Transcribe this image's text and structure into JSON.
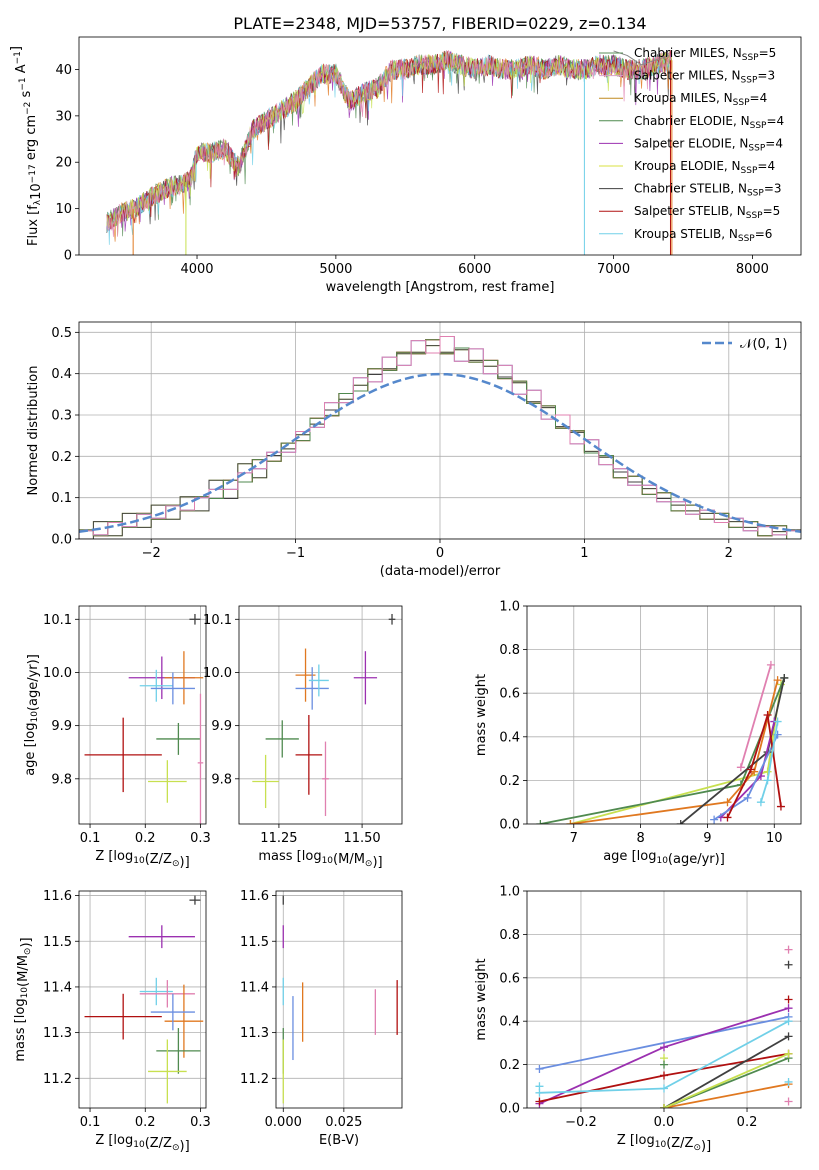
{
  "figure_title": "PLATE=2348, MJD=53757, FIBERID=0229, z=0.134",
  "legend_entries": [
    {
      "label": "Chabrier MILES, N",
      "sub": "SSP",
      "suffix": "=5",
      "color": "#5a8f5a"
    },
    {
      "label": "Salpeter MILES, N",
      "sub": "SSP",
      "suffix": "=3",
      "color": "#d8a0c8"
    },
    {
      "label": "Kroupa MILES, N",
      "sub": "SSP",
      "suffix": "=4",
      "color": "#c08a20"
    },
    {
      "label": "Chabrier ELODIE, N",
      "sub": "SSP",
      "suffix": "=4",
      "color": "#4f8a4f"
    },
    {
      "label": "Salpeter ELODIE, N",
      "sub": "SSP",
      "suffix": "=4",
      "color": "#9b30b0"
    },
    {
      "label": "Kroupa ELODIE, N",
      "sub": "SSP",
      "suffix": "=4",
      "color": "#d8e040"
    },
    {
      "label": "Chabrier STELIB, N",
      "sub": "SSP",
      "suffix": "=3",
      "color": "#404040"
    },
    {
      "label": "Salpeter STELIB, N",
      "sub": "SSP",
      "suffix": "=5",
      "color": "#b01010"
    },
    {
      "label": "Kroupa STELIB, N",
      "sub": "SSP",
      "suffix": "=6",
      "color": "#70d0e8"
    }
  ],
  "colors": [
    "#5a8f5a",
    "#e080b0",
    "#e07820",
    "#4f8a4f",
    "#9b30b0",
    "#c8e050",
    "#404040",
    "#b01010",
    "#70d0e8",
    "#6a8ee0"
  ],
  "chart_data": [
    {
      "id": "spectrum",
      "type": "line",
      "xlabel": "wavelength [Angstrom, rest frame]",
      "ylabel": "Flux [f",
      "ylabel_sub": "λ",
      "ylabel_rest": "10",
      "ylabel_sup1": "−17",
      "ylabel_unit": " erg cm",
      "ylabel_sup2": "−2",
      "ylabel_unit2": " s",
      "ylabel_sup3": "−1",
      "ylabel_unit3": " A",
      "ylabel_sup4": "−1",
      "ylabel_end": "]",
      "xlim": [
        3150,
        8350
      ],
      "ylim": [
        0,
        47
      ],
      "xticks": [
        "4000",
        "5000",
        "6000",
        "7000",
        "8000"
      ],
      "xtick_values": [
        4000,
        5000,
        6000,
        7000,
        8000
      ],
      "yticks": [
        "0",
        "10",
        "20",
        "30",
        "40"
      ],
      "ytick_values": [
        0,
        10,
        20,
        30,
        40
      ],
      "x": [
        3350,
        3450,
        3550,
        3650,
        3750,
        3850,
        3950,
        4000,
        4100,
        4200,
        4300,
        4400,
        4500,
        4600,
        4700,
        4800,
        4900,
        5000,
        5100,
        5200,
        5300,
        5400,
        5500,
        5600,
        5700,
        5800,
        5900,
        6000,
        6100,
        6200,
        6300,
        6400,
        6500,
        6600,
        6700,
        6800,
        6900,
        7000,
        7100,
        7200,
        7300,
        7400
      ],
      "y": [
        7,
        9,
        10,
        12,
        14,
        15,
        16,
        22,
        22,
        23,
        19,
        27,
        29,
        31,
        33,
        36,
        39,
        39,
        33,
        35,
        36,
        40,
        40,
        41,
        41,
        42,
        41,
        40,
        41,
        40,
        40,
        41,
        40,
        41,
        40,
        40,
        41,
        41,
        40,
        40,
        41,
        42
      ],
      "model_end_y": [
        44,
        43,
        41,
        42,
        43
      ]
    },
    {
      "id": "residual-hist",
      "type": "line",
      "xlabel": "(data-model)/error",
      "ylabel": "Normed distribution",
      "xlim": [
        -2.5,
        2.5
      ],
      "ylim": [
        0,
        0.525
      ],
      "xticks": [
        "−2",
        "−1",
        "0",
        "1",
        "2"
      ],
      "xtick_values": [
        -2,
        -1,
        0,
        1,
        2
      ],
      "yticks": [
        "0.0",
        "0.1",
        "0.2",
        "0.3",
        "0.4",
        "0.5"
      ],
      "ytick_values": [
        0,
        0.1,
        0.2,
        0.3,
        0.4,
        0.5
      ],
      "legend": "𝒩(0, 1)",
      "bin_edges": [
        -2.5,
        -2.4,
        -2.3,
        -2.2,
        -2.1,
        -2.0,
        -1.9,
        -1.8,
        -1.7,
        -1.6,
        -1.5,
        -1.4,
        -1.3,
        -1.2,
        -1.1,
        -1.0,
        -0.9,
        -0.8,
        -0.7,
        -0.6,
        -0.5,
        -0.4,
        -0.3,
        -0.2,
        -0.1,
        0.0,
        0.1,
        0.2,
        0.3,
        0.4,
        0.5,
        0.6,
        0.7,
        0.8,
        0.9,
        1.0,
        1.1,
        1.2,
        1.3,
        1.4,
        1.5,
        1.6,
        1.7,
        1.8,
        1.9,
        2.0,
        2.1,
        2.2,
        2.3,
        2.4,
        2.5
      ],
      "hist_a": [
        0.01,
        0.02,
        0.03,
        0.04,
        0.05,
        0.06,
        0.07,
        0.08,
        0.09,
        0.11,
        0.13,
        0.15,
        0.18,
        0.2,
        0.22,
        0.25,
        0.28,
        0.31,
        0.34,
        0.37,
        0.4,
        0.42,
        0.44,
        0.46,
        0.47,
        0.46,
        0.45,
        0.44,
        0.42,
        0.4,
        0.37,
        0.34,
        0.31,
        0.28,
        0.25,
        0.22,
        0.19,
        0.16,
        0.14,
        0.12,
        0.1,
        0.08,
        0.07,
        0.06,
        0.05,
        0.04,
        0.03,
        0.02,
        0.02,
        0.01
      ],
      "hist_b": [
        0.02,
        0.01,
        0.04,
        0.03,
        0.06,
        0.05,
        0.08,
        0.07,
        0.1,
        0.12,
        0.12,
        0.16,
        0.17,
        0.21,
        0.21,
        0.26,
        0.27,
        0.33,
        0.33,
        0.39,
        0.38,
        0.44,
        0.42,
        0.48,
        0.45,
        0.49,
        0.43,
        0.46,
        0.4,
        0.42,
        0.35,
        0.36,
        0.29,
        0.3,
        0.23,
        0.24,
        0.18,
        0.17,
        0.13,
        0.13,
        0.09,
        0.09,
        0.06,
        0.07,
        0.04,
        0.05,
        0.02,
        0.03,
        0.01,
        0.02
      ],
      "hist_c": [
        0.01,
        0.03,
        0.02,
        0.05,
        0.04,
        0.07,
        0.06,
        0.09,
        0.08,
        0.13,
        0.11,
        0.17,
        0.16,
        0.19,
        0.23,
        0.24,
        0.29,
        0.3,
        0.35,
        0.36,
        0.41,
        0.4,
        0.46,
        0.44,
        0.48,
        0.44,
        0.47,
        0.42,
        0.43,
        0.38,
        0.39,
        0.32,
        0.33,
        0.26,
        0.27,
        0.2,
        0.21,
        0.15,
        0.15,
        0.11,
        0.11,
        0.07,
        0.08,
        0.05,
        0.06,
        0.03,
        0.04,
        0.02,
        0.03,
        0.01
      ]
    },
    {
      "id": "age-vs-z",
      "type": "scatter",
      "xlabel": "Z [log",
      "xlabel_sub": "10",
      "xlabel_rest": "(Z/Z",
      "xlabel_sub2": "⊙",
      "xlabel_end": ")]",
      "ylabel": "age  [log",
      "ylabel_sub": "10",
      "ylabel_rest": "(age/yr)]",
      "xlim": [
        0.08,
        0.31
      ],
      "ylim": [
        9.715,
        10.125
      ],
      "xticks": [
        "0.1",
        "0.2",
        "0.3"
      ],
      "xtick_values": [
        0.1,
        0.2,
        0.3
      ],
      "yticks": [
        "9.8",
        "9.9",
        "10.0",
        "10.1"
      ],
      "ytick_values": [
        9.8,
        9.9,
        10.0,
        10.1
      ],
      "points": [
        {
          "x": 0.29,
          "y": 10.1,
          "xerr": 0.01,
          "yerr": 0.01,
          "color": 6
        },
        {
          "x": 0.23,
          "y": 9.99,
          "xerr": 0.06,
          "yerr": 0.04,
          "color": 4
        },
        {
          "x": 0.22,
          "y": 9.975,
          "xerr": 0.03,
          "yerr": 0.03,
          "color": 8
        },
        {
          "x": 0.27,
          "y": 9.99,
          "xerr": 0.035,
          "yerr": 0.05,
          "color": 2
        },
        {
          "x": 0.25,
          "y": 9.97,
          "xerr": 0.04,
          "yerr": 0.03,
          "color": 9
        },
        {
          "x": 0.26,
          "y": 9.875,
          "xerr": 0.04,
          "yerr": 0.03,
          "color": 3
        },
        {
          "x": 0.16,
          "y": 9.845,
          "xerr": 0.07,
          "yerr": 0.07,
          "color": 7
        },
        {
          "x": 0.24,
          "y": 9.795,
          "xerr": 0.035,
          "yerr": 0.04,
          "color": 5
        },
        {
          "x": 0.3,
          "y": 9.83,
          "xerr": 0.005,
          "yerr": 0.13,
          "color": 1
        }
      ]
    },
    {
      "id": "age-vs-mass",
      "type": "scatter",
      "xlabel": "mass [log",
      "xlabel_sub": "10",
      "xlabel_rest": "(M/M",
      "xlabel_sub2": "⊙",
      "xlabel_end": ")]",
      "xlim": [
        11.13,
        11.62
      ],
      "ylim": [
        9.715,
        10.125
      ],
      "xticks": [
        "11.25",
        "11.50"
      ],
      "xtick_values": [
        11.25,
        11.5
      ],
      "yticks": [
        "9.8",
        "9.9",
        "10.0",
        "10.1"
      ],
      "ytick_values": [
        9.8,
        9.9,
        10.0,
        10.1
      ],
      "points": [
        {
          "x": 11.59,
          "y": 10.1,
          "xerr": 0.01,
          "yerr": 0.01,
          "color": 6
        },
        {
          "x": 11.51,
          "y": 9.99,
          "xerr": 0.035,
          "yerr": 0.05,
          "color": 4
        },
        {
          "x": 11.33,
          "y": 9.995,
          "xerr": 0.03,
          "yerr": 0.05,
          "color": 2
        },
        {
          "x": 11.35,
          "y": 9.97,
          "xerr": 0.05,
          "yerr": 0.04,
          "color": 9
        },
        {
          "x": 11.37,
          "y": 9.985,
          "xerr": 0.03,
          "yerr": 0.03,
          "color": 8
        },
        {
          "x": 11.26,
          "y": 9.875,
          "xerr": 0.05,
          "yerr": 0.035,
          "color": 3
        },
        {
          "x": 11.34,
          "y": 9.845,
          "xerr": 0.04,
          "yerr": 0.075,
          "color": 7
        },
        {
          "x": 11.21,
          "y": 9.795,
          "xerr": 0.04,
          "yerr": 0.05,
          "color": 5
        },
        {
          "x": 11.39,
          "y": 9.8,
          "xerr": 0.01,
          "yerr": 0.07,
          "color": 1
        }
      ]
    },
    {
      "id": "weight-vs-age",
      "type": "line",
      "xlabel": "age  [log",
      "xlabel_sub": "10",
      "xlabel_rest": "(age/yr)]",
      "ylabel": "mass weight",
      "xlim": [
        6.3,
        10.4
      ],
      "ylim": [
        0,
        1.0
      ],
      "xticks": [
        "7",
        "8",
        "9",
        "10"
      ],
      "xtick_values": [
        7,
        8,
        9,
        10
      ],
      "yticks": [
        "0.0",
        "0.2",
        "0.4",
        "0.6",
        "0.8",
        "1.0"
      ],
      "ytick_values": [
        0,
        0.2,
        0.4,
        0.6,
        0.8,
        1.0
      ],
      "series": [
        {
          "color": 5,
          "x": [
            6.95,
            9.9,
            10.1
          ],
          "y": [
            0.0,
            0.24,
            0.64
          ]
        },
        {
          "color": 3,
          "x": [
            6.5,
            9.5,
            10.15
          ],
          "y": [
            0.0,
            0.18,
            0.67
          ]
        },
        {
          "color": 2,
          "x": [
            6.95,
            9.3,
            9.7,
            10.05
          ],
          "y": [
            0.0,
            0.1,
            0.24,
            0.66
          ]
        },
        {
          "color": 6,
          "x": [
            8.6,
            9.9,
            10.15
          ],
          "y": [
            0.0,
            0.33,
            0.67
          ]
        },
        {
          "color": 1,
          "x": [
            9.5,
            9.95
          ],
          "y": [
            0.26,
            0.73
          ]
        },
        {
          "color": 4,
          "x": [
            9.2,
            9.8,
            10.0
          ],
          "y": [
            0.03,
            0.22,
            0.47
          ]
        },
        {
          "color": 9,
          "x": [
            9.1,
            9.6,
            10.05
          ],
          "y": [
            0.02,
            0.12,
            0.41
          ]
        },
        {
          "color": 7,
          "x": [
            9.3,
            9.65,
            9.9,
            10.1
          ],
          "y": [
            0.03,
            0.25,
            0.5,
            0.08
          ]
        },
        {
          "color": 8,
          "x": [
            9.8,
            9.9,
            10.05
          ],
          "y": [
            0.1,
            0.2,
            0.47
          ]
        }
      ]
    },
    {
      "id": "mass-vs-z",
      "type": "scatter",
      "xlabel": "Z [log",
      "xlabel_sub": "10",
      "xlabel_rest": "(Z/Z",
      "xlabel_sub2": "⊙",
      "xlabel_end": ")]",
      "ylabel": "mass [log",
      "ylabel_sub": "10",
      "ylabel_rest": "(M/M",
      "ylabel_sub2": "⊙",
      "ylabel_end": ")]",
      "xlim": [
        0.08,
        0.31
      ],
      "ylim": [
        11.135,
        11.61
      ],
      "xticks": [
        "0.1",
        "0.2",
        "0.3"
      ],
      "xtick_values": [
        0.1,
        0.2,
        0.3
      ],
      "yticks": [
        "11.2",
        "11.3",
        "11.4",
        "11.5",
        "11.6"
      ],
      "ytick_values": [
        11.2,
        11.3,
        11.4,
        11.5,
        11.6
      ],
      "points": [
        {
          "x": 0.29,
          "y": 11.59,
          "xerr": 0.01,
          "yerr": 0.01,
          "color": 6
        },
        {
          "x": 0.23,
          "y": 11.51,
          "xerr": 0.06,
          "yerr": 0.025,
          "color": 4
        },
        {
          "x": 0.22,
          "y": 11.39,
          "xerr": 0.03,
          "yerr": 0.03,
          "color": 8
        },
        {
          "x": 0.24,
          "y": 11.385,
          "xerr": 0.05,
          "yerr": 0.03,
          "color": 1
        },
        {
          "x": 0.27,
          "y": 11.325,
          "xerr": 0.035,
          "yerr": 0.08,
          "color": 2
        },
        {
          "x": 0.25,
          "y": 11.345,
          "xerr": 0.04,
          "yerr": 0.04,
          "color": 9
        },
        {
          "x": 0.16,
          "y": 11.335,
          "xerr": 0.07,
          "yerr": 0.05,
          "color": 7
        },
        {
          "x": 0.26,
          "y": 11.26,
          "xerr": 0.04,
          "yerr": 0.05,
          "color": 3
        },
        {
          "x": 0.24,
          "y": 11.215,
          "xerr": 0.035,
          "yerr": 0.07,
          "color": 5
        }
      ]
    },
    {
      "id": "mass-vs-ebv",
      "type": "scatter",
      "xlabel": "E(B-V)",
      "xlim": [
        -0.003,
        0.049
      ],
      "ylim": [
        11.135,
        11.61
      ],
      "xticks": [
        "0.000",
        "0.025"
      ],
      "xtick_values": [
        0,
        0.025
      ],
      "yticks": [
        "11.2",
        "11.3",
        "11.4",
        "11.5",
        "11.6"
      ],
      "ytick_values": [
        11.2,
        11.3,
        11.4,
        11.5,
        11.6
      ],
      "points": [
        {
          "x": 0.0,
          "y": 11.59,
          "xerr": 0,
          "yerr": 0.01,
          "color": 6
        },
        {
          "x": 0.0,
          "y": 11.51,
          "xerr": 0,
          "yerr": 0.025,
          "color": 4
        },
        {
          "x": 0.0,
          "y": 11.26,
          "xerr": 0,
          "yerr": 0.05,
          "color": 3
        },
        {
          "x": 0.0,
          "y": 11.215,
          "xerr": 0,
          "yerr": 0.07,
          "color": 5
        },
        {
          "x": 0.0,
          "y": 11.39,
          "xerr": 0,
          "yerr": 0.03,
          "color": 8
        },
        {
          "x": 0.004,
          "y": 11.31,
          "xerr": 0,
          "yerr": 0.07,
          "color": 9
        },
        {
          "x": 0.008,
          "y": 11.345,
          "xerr": 0,
          "yerr": 0.065,
          "color": 2
        },
        {
          "x": 0.038,
          "y": 11.345,
          "xerr": 0,
          "yerr": 0.05,
          "color": 1
        },
        {
          "x": 0.047,
          "y": 11.355,
          "xerr": 0,
          "yerr": 0.06,
          "color": 7
        }
      ]
    },
    {
      "id": "weight-vs-z",
      "type": "line",
      "xlabel": "Z [log",
      "xlabel_sub": "10",
      "xlabel_rest": "(Z/Z",
      "xlabel_sub2": "⊙",
      "xlabel_end": ")]",
      "ylabel": "mass weight",
      "xlim": [
        -0.33,
        0.33
      ],
      "ylim": [
        0,
        1.0
      ],
      "xticks": [
        "−0.2",
        "0.0",
        "0.2"
      ],
      "xtick_values": [
        -0.2,
        0,
        0.2
      ],
      "yticks": [
        "0.0",
        "0.2",
        "0.4",
        "0.6",
        "0.8",
        "1.0"
      ],
      "ytick_values": [
        0,
        0.2,
        0.4,
        0.6,
        0.8,
        1.0
      ],
      "series": [
        {
          "color": 9,
          "x": [
            -0.3,
            0.3
          ],
          "y": [
            0.18,
            0.42
          ]
        },
        {
          "color": 4,
          "x": [
            -0.3,
            0.0,
            0.3
          ],
          "y": [
            0.02,
            0.28,
            0.46
          ]
        },
        {
          "color": 7,
          "x": [
            -0.3,
            0.0,
            0.3
          ],
          "y": [
            0.03,
            0.15,
            0.25
          ]
        },
        {
          "color": 8,
          "x": [
            -0.3,
            0.0,
            0.3
          ],
          "y": [
            0.07,
            0.09,
            0.4
          ]
        },
        {
          "color": 6,
          "x": [
            0.0,
            0.3
          ],
          "y": [
            0.0,
            0.33
          ]
        },
        {
          "color": 3,
          "x": [
            0.0,
            0.3
          ],
          "y": [
            0.0,
            0.23
          ]
        },
        {
          "color": 2,
          "x": [
            0.0,
            0.3
          ],
          "y": [
            0.0,
            0.11
          ]
        },
        {
          "color": 5,
          "x": [
            0.0,
            0.3
          ],
          "y": [
            0.0,
            0.25
          ]
        }
      ],
      "markers": [
        {
          "color": 8,
          "x": -0.3,
          "y": 0.1
        },
        {
          "color": 5,
          "x": 0.0,
          "y": 0.23
        },
        {
          "color": 3,
          "x": 0.0,
          "y": 0.2
        },
        {
          "color": 1,
          "x": 0.3,
          "y": 0.73
        },
        {
          "color": 6,
          "x": 0.3,
          "y": 0.66
        },
        {
          "color": 7,
          "x": 0.3,
          "y": 0.5
        },
        {
          "color": 8,
          "x": 0.3,
          "y": 0.12
        },
        {
          "color": 1,
          "x": 0.3,
          "y": 0.03
        }
      ]
    }
  ]
}
